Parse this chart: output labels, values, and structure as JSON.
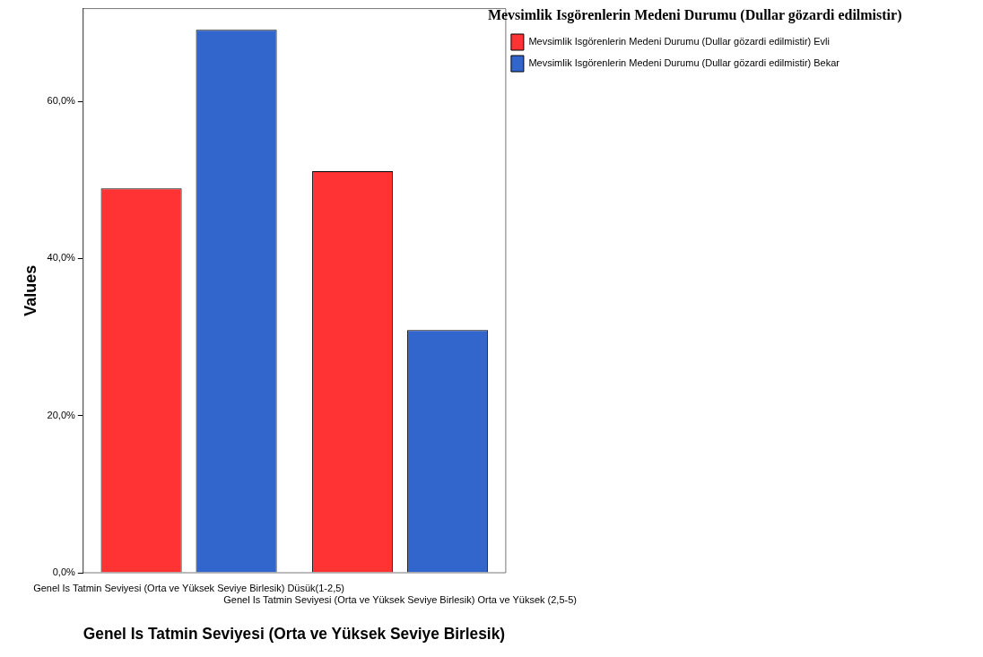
{
  "chart_data": {
    "type": "bar",
    "xlabel": "Genel Is Tatmin Seviyesi (Orta ve Yüksek Seviye Birlesik)",
    "ylabel": "Values",
    "legend_title": "Mevsimlik Isgörenlerin Medeni Durumu (Dullar gözardi edilmistir)",
    "categories": [
      "Genel Is Tatmin Seviyesi (Orta ve Yüksek Seviye Birlesik) Düsük(1-2,5)",
      "Genel Is Tatmin Seviyesi (Orta ve Yüksek Seviye Birlesik) Orta ve Yüksek (2,5-5)"
    ],
    "series": [
      {
        "name": "Mevsimlik Isgörenlerin Medeni Durumu (Dullar gözardi edilmistir) Evli",
        "color": "#ff3333",
        "values": [
          48.9,
          51.1
        ]
      },
      {
        "name": "Mevsimlik Isgörenlerin Medeni Durumu (Dullar gözardi edilmistir) Bekar",
        "color": "#3366cc",
        "values": [
          69.1,
          30.9
        ]
      }
    ],
    "ylim": [
      0,
      71.8
    ],
    "yticks": [
      {
        "value": 0,
        "label": "0,0%"
      },
      {
        "value": 20,
        "label": "20,0%"
      },
      {
        "value": 40,
        "label": "40,0%"
      },
      {
        "value": 60,
        "label": "60,0%"
      }
    ],
    "grid": false,
    "legend": "top right"
  }
}
